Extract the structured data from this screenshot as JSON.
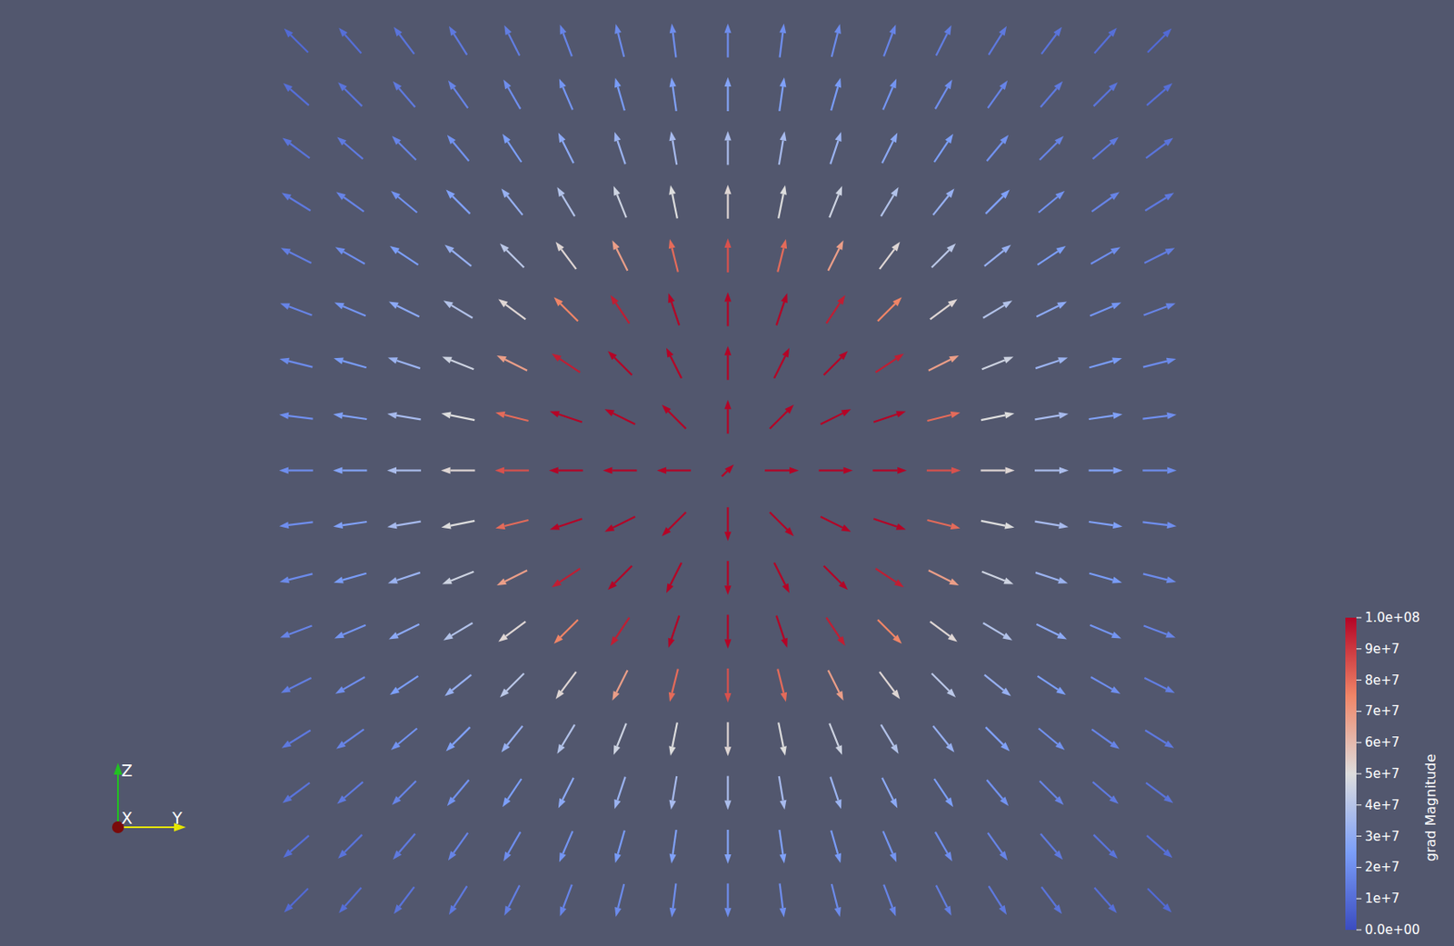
{
  "chart_data": {
    "type": "vector_field",
    "colorbar_label": "grad Magnitude",
    "clim": [
      0,
      100000000.0
    ],
    "cticks": [
      {
        "value": 0,
        "label": "0.0e+00"
      },
      {
        "value": 10000000.0,
        "label": "1e+7"
      },
      {
        "value": 20000000.0,
        "label": "2e+7"
      },
      {
        "value": 30000000.0,
        "label": "3e+7"
      },
      {
        "value": 40000000.0,
        "label": "4e+7"
      },
      {
        "value": 50000000.0,
        "label": "5e+7"
      },
      {
        "value": 60000000.0,
        "label": "6e+7"
      },
      {
        "value": 70000000.0,
        "label": "7e+7"
      },
      {
        "value": 80000000.0,
        "label": "8e+7"
      },
      {
        "value": 90000000.0,
        "label": "9e+7"
      },
      {
        "value": 100000000.0,
        "label": "1.0e+08"
      }
    ],
    "axes_triad": {
      "x": "X",
      "y": "Y",
      "z": "Z"
    },
    "magnitude": [
      [
        9000000.0,
        10500000.0,
        12000000.0,
        13500000.0,
        15000000.0,
        17000000.0,
        19000000.0,
        20000000.0,
        20000000.0,
        20000000.0,
        19000000.0,
        17000000.0,
        15000000.0,
        13500000.0,
        12000000.0,
        10500000.0,
        9000000.0
      ],
      [
        10500000.0,
        12000000.0,
        14000000.0,
        17000000.0,
        20000000.0,
        22000000.0,
        24000000.0,
        26000000.0,
        27000000.0,
        26000000.0,
        24000000.0,
        22000000.0,
        20000000.0,
        17000000.0,
        14000000.0,
        12000000.0,
        10500000.0
      ],
      [
        12000000.0,
        14000000.0,
        17000000.0,
        21000000.0,
        25000000.0,
        29000000.0,
        33000000.0,
        36000000.0,
        37000000.0,
        36000000.0,
        33000000.0,
        29000000.0,
        25000000.0,
        21000000.0,
        17000000.0,
        14000000.0,
        12000000.0
      ],
      [
        13500000.0,
        17000000.0,
        21000000.0,
        26000000.0,
        32000000.0,
        39000000.0,
        46000000.0,
        50000000.0,
        52000000.0,
        50000000.0,
        46000000.0,
        39000000.0,
        32000000.0,
        26000000.0,
        21000000.0,
        17000000.0,
        13500000.0
      ],
      [
        15000000.0,
        20000000.0,
        25000000.0,
        32000000.0,
        41000000.0,
        52000000.0,
        68000000.0,
        80000000.0,
        85000000.0,
        80000000.0,
        68000000.0,
        52000000.0,
        41000000.0,
        32000000.0,
        25000000.0,
        20000000.0,
        15000000.0
      ],
      [
        17000000.0,
        22000000.0,
        29000000.0,
        39000000.0,
        52000000.0,
        75000000.0,
        95000000.0,
        100000000.0,
        100000000.0,
        100000000.0,
        95000000.0,
        75000000.0,
        52000000.0,
        39000000.0,
        29000000.0,
        22000000.0,
        17000000.0
      ],
      [
        19000000.0,
        24000000.0,
        33000000.0,
        46000000.0,
        68000000.0,
        95000000.0,
        100000000.0,
        100000000.0,
        100000000.0,
        100000000.0,
        100000000.0,
        95000000.0,
        68000000.0,
        46000000.0,
        33000000.0,
        24000000.0,
        19000000.0
      ],
      [
        20000000.0,
        26000000.0,
        36000000.0,
        50000000.0,
        80000000.0,
        100000000.0,
        100000000.0,
        100000000.0,
        100000000.0,
        100000000.0,
        100000000.0,
        100000000.0,
        80000000.0,
        50000000.0,
        36000000.0,
        26000000.0,
        20000000.0
      ],
      [
        20000000.0,
        27000000.0,
        37000000.0,
        52000000.0,
        85000000.0,
        100000000.0,
        100000000.0,
        100000000.0,
        100000000.0,
        100000000.0,
        100000000.0,
        100000000.0,
        85000000.0,
        52000000.0,
        37000000.0,
        27000000.0,
        20000000.0
      ],
      [
        20000000.0,
        26000000.0,
        36000000.0,
        50000000.0,
        80000000.0,
        100000000.0,
        100000000.0,
        100000000.0,
        100000000.0,
        100000000.0,
        100000000.0,
        100000000.0,
        80000000.0,
        50000000.0,
        36000000.0,
        26000000.0,
        20000000.0
      ],
      [
        19000000.0,
        24000000.0,
        33000000.0,
        46000000.0,
        68000000.0,
        95000000.0,
        100000000.0,
        100000000.0,
        100000000.0,
        100000000.0,
        100000000.0,
        95000000.0,
        68000000.0,
        46000000.0,
        33000000.0,
        24000000.0,
        19000000.0
      ],
      [
        17000000.0,
        22000000.0,
        29000000.0,
        39000000.0,
        52000000.0,
        75000000.0,
        95000000.0,
        100000000.0,
        100000000.0,
        100000000.0,
        95000000.0,
        75000000.0,
        52000000.0,
        39000000.0,
        29000000.0,
        22000000.0,
        17000000.0
      ],
      [
        15000000.0,
        20000000.0,
        25000000.0,
        32000000.0,
        41000000.0,
        52000000.0,
        68000000.0,
        80000000.0,
        85000000.0,
        80000000.0,
        68000000.0,
        52000000.0,
        41000000.0,
        32000000.0,
        25000000.0,
        20000000.0,
        15000000.0
      ],
      [
        13500000.0,
        17000000.0,
        21000000.0,
        26000000.0,
        32000000.0,
        39000000.0,
        46000000.0,
        50000000.0,
        52000000.0,
        50000000.0,
        46000000.0,
        39000000.0,
        32000000.0,
        26000000.0,
        21000000.0,
        17000000.0,
        13500000.0
      ],
      [
        12000000.0,
        14000000.0,
        17000000.0,
        21000000.0,
        25000000.0,
        29000000.0,
        33000000.0,
        36000000.0,
        37000000.0,
        36000000.0,
        33000000.0,
        29000000.0,
        25000000.0,
        21000000.0,
        17000000.0,
        14000000.0,
        12000000.0
      ],
      [
        10500000.0,
        12000000.0,
        14000000.0,
        17000000.0,
        20000000.0,
        22000000.0,
        24000000.0,
        26000000.0,
        27000000.0,
        26000000.0,
        24000000.0,
        22000000.0,
        20000000.0,
        17000000.0,
        14000000.0,
        12000000.0,
        10500000.0
      ],
      [
        9000000.0,
        10500000.0,
        12000000.0,
        13500000.0,
        15000000.0,
        17000000.0,
        19000000.0,
        20000000.0,
        20000000.0,
        20000000.0,
        19000000.0,
        17000000.0,
        15000000.0,
        13500000.0,
        12000000.0,
        10500000.0,
        9000000.0
      ]
    ]
  }
}
